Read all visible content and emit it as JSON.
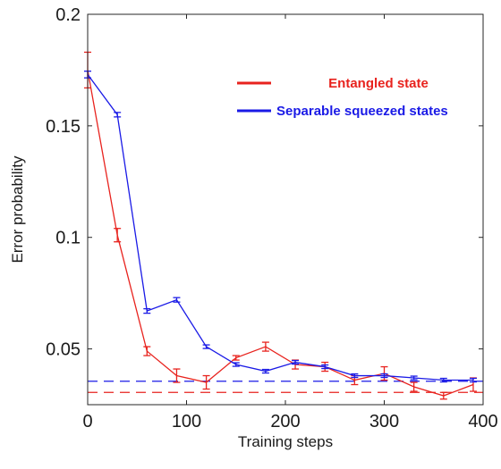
{
  "chart_data": {
    "type": "line",
    "xlabel": "Training steps",
    "ylabel": "Error probability",
    "xlim": [
      0,
      400
    ],
    "ylim": [
      0.025,
      0.2
    ],
    "x_ticks": [
      0,
      100,
      200,
      300,
      400
    ],
    "y_ticks": [
      0.05,
      0.1,
      0.15,
      0.2
    ],
    "x_tick_labels": [
      "0",
      "100",
      "200",
      "300",
      "400"
    ],
    "y_tick_labels": [
      "0.05",
      "0.1",
      "0.15",
      "0.2"
    ],
    "legend_position": "top-right",
    "x": [
      0,
      30,
      60,
      90,
      120,
      150,
      180,
      210,
      240,
      270,
      300,
      330,
      360,
      390
    ],
    "series": [
      {
        "name": "Entangled state",
        "color": "#e8231e",
        "values": [
          0.175,
          0.101,
          0.049,
          0.038,
          0.035,
          0.046,
          0.051,
          0.043,
          0.042,
          0.036,
          0.039,
          0.033,
          0.029,
          0.034
        ],
        "errors": [
          0.008,
          0.003,
          0.002,
          0.003,
          0.003,
          0.001,
          0.002,
          0.002,
          0.002,
          0.002,
          0.003,
          0.002,
          0.0015,
          0.003
        ],
        "baseline": 0.0305
      },
      {
        "name": "Separable squeezed states",
        "color": "#1a1ae6",
        "values": [
          0.173,
          0.155,
          0.067,
          0.072,
          0.051,
          0.043,
          0.04,
          0.044,
          0.042,
          0.038,
          0.038,
          0.037,
          0.036,
          0.036
        ],
        "errors": [
          0.0015,
          0.001,
          0.001,
          0.001,
          0.0008,
          0.0008,
          0.0008,
          0.0008,
          0.0008,
          0.0008,
          0.0008,
          0.0008,
          0.0008,
          0.0008
        ],
        "baseline": 0.0355
      }
    ]
  }
}
